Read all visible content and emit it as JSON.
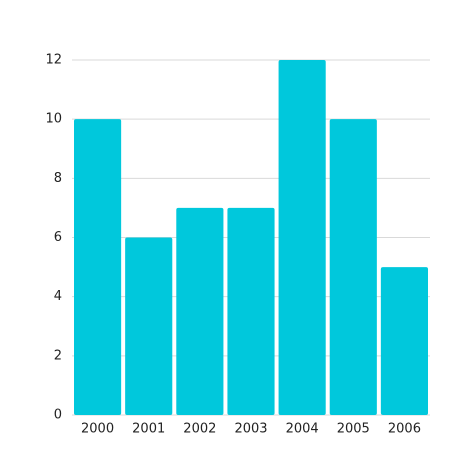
{
  "chart_data": {
    "type": "bar",
    "categories": [
      "2000",
      "2001",
      "2002",
      "2003",
      "2004",
      "2005",
      "2006"
    ],
    "values": [
      10,
      6,
      7,
      7,
      12,
      10,
      5
    ],
    "color": "#00c8dc",
    "ylim": [
      0,
      12
    ],
    "yticks": [
      0,
      2,
      4,
      6,
      8,
      10,
      12
    ],
    "grid": true
  }
}
